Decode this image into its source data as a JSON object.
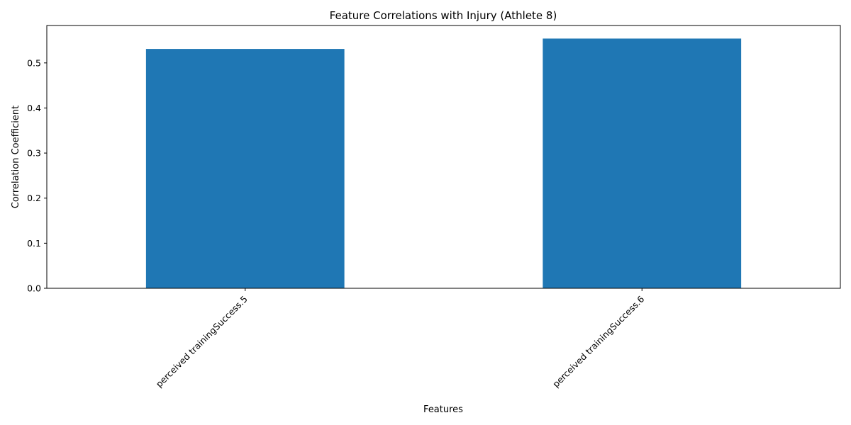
{
  "chart_data": {
    "type": "bar",
    "title": "Feature Correlations with Injury (Athlete 8)",
    "xlabel": "Features",
    "ylabel": "Correlation Coefficient",
    "categories": [
      "perceived trainingSuccess.5",
      "perceived trainingSuccess.6"
    ],
    "values": [
      0.531,
      0.554
    ],
    "ylim": [
      0,
      0.583
    ],
    "yticks": [
      0.0,
      0.1,
      0.2,
      0.3,
      0.4,
      0.5
    ],
    "ytick_labels": [
      "0.0",
      "0.1",
      "0.2",
      "0.3",
      "0.4",
      "0.5"
    ],
    "bar_color": "#1f77b4",
    "grid": false,
    "legend": "none"
  }
}
